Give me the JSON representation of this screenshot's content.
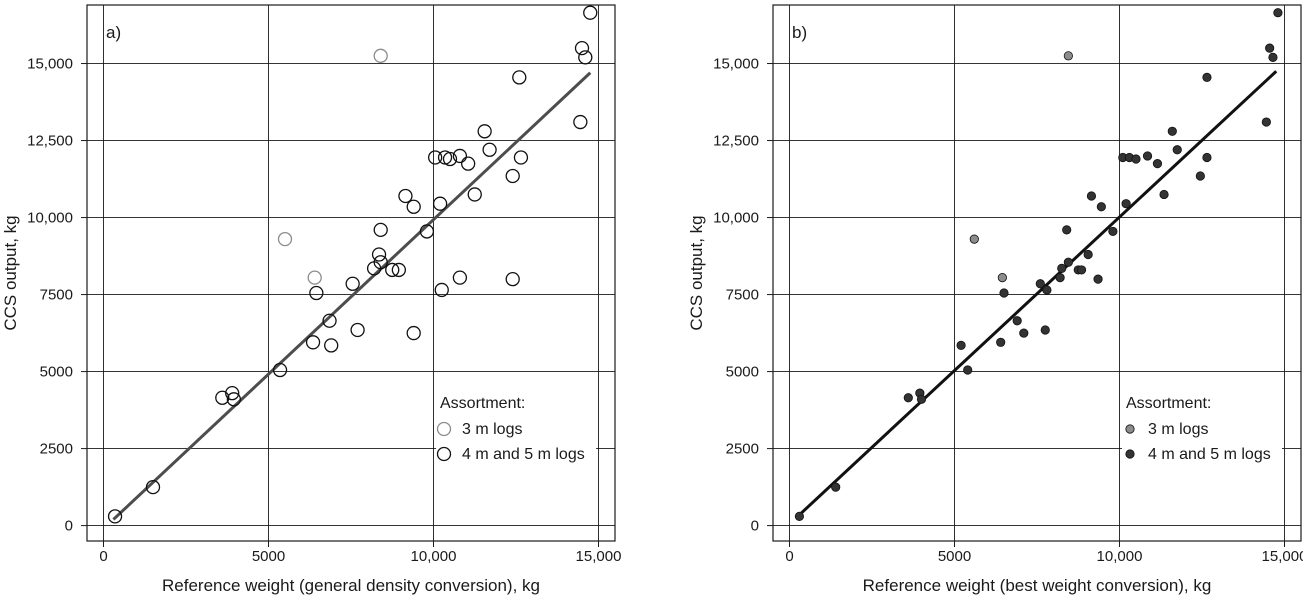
{
  "chart_data": [
    {
      "type": "scatter",
      "panel_label": "a)",
      "xlabel": "Reference weight (general density conversion), kg",
      "ylabel": "CCS output, kg",
      "xlim": [
        -500,
        15500
      ],
      "ylim": [
        -500,
        16900
      ],
      "xticks": [
        0,
        5000,
        10000,
        15000
      ],
      "xtick_labels": [
        "0",
        "5000",
        "10,000",
        "15,000"
      ],
      "yticks": [
        0,
        2500,
        5000,
        7500,
        10000,
        12500,
        15000
      ],
      "ytick_labels": [
        "0",
        "2500",
        "5000",
        "7500",
        "10,000",
        "12,500",
        "15,000"
      ],
      "grid": true,
      "legend_title": "Assortment:",
      "legend_position": "bottom-right",
      "series": [
        {
          "name": "3 m logs",
          "style": "open",
          "color": "#8c8c8c",
          "points": [
            [
              5500,
              9300
            ],
            [
              6400,
              8050
            ],
            [
              8400,
              15250
            ]
          ]
        },
        {
          "name": "4 m and 5 m logs",
          "style": "open",
          "color": "#111111",
          "points": [
            [
              350,
              300
            ],
            [
              1500,
              1250
            ],
            [
              3600,
              4150
            ],
            [
              3900,
              4300
            ],
            [
              3950,
              4100
            ],
            [
              5350,
              5050
            ],
            [
              6350,
              5950
            ],
            [
              6450,
              7550
            ],
            [
              6850,
              6650
            ],
            [
              6900,
              5850
            ],
            [
              7550,
              7850
            ],
            [
              7700,
              6350
            ],
            [
              8200,
              8350
            ],
            [
              8350,
              8800
            ],
            [
              8400,
              8550
            ],
            [
              8400,
              9600
            ],
            [
              8750,
              8300
            ],
            [
              8950,
              8300
            ],
            [
              9150,
              10700
            ],
            [
              9400,
              10350
            ],
            [
              9400,
              6250
            ],
            [
              9800,
              9550
            ],
            [
              10050,
              11950
            ],
            [
              10200,
              10450
            ],
            [
              10250,
              7650
            ],
            [
              10350,
              11950
            ],
            [
              10500,
              11900
            ],
            [
              10800,
              12000
            ],
            [
              10800,
              8050
            ],
            [
              11050,
              11750
            ],
            [
              11250,
              10750
            ],
            [
              11550,
              12800
            ],
            [
              11700,
              12200
            ],
            [
              12400,
              11350
            ],
            [
              12400,
              8000
            ],
            [
              12600,
              14550
            ],
            [
              12650,
              11950
            ],
            [
              14450,
              13100
            ],
            [
              14500,
              15500
            ],
            [
              14600,
              15200
            ],
            [
              14750,
              16650
            ]
          ]
        }
      ],
      "fit_line": [
        [
          300,
          200
        ],
        [
          14750,
          14700
        ]
      ],
      "fit_line_color": "#4d4d4d"
    },
    {
      "type": "scatter",
      "panel_label": "b)",
      "xlabel": "Reference weight (best weight conversion), kg",
      "ylabel": "CCS output, kg",
      "xlim": [
        -500,
        15500
      ],
      "ylim": [
        -500,
        16900
      ],
      "xticks": [
        0,
        5000,
        10000,
        15000
      ],
      "xtick_labels": [
        "0",
        "5000",
        "10,000",
        "15,000"
      ],
      "yticks": [
        0,
        2500,
        5000,
        7500,
        10000,
        12500,
        15000
      ],
      "ytick_labels": [
        "0",
        "2500",
        "5000",
        "7500",
        "10,000",
        "12,500",
        "15,000"
      ],
      "grid": true,
      "legend_title": "Assortment:",
      "legend_position": "bottom-right",
      "series": [
        {
          "name": "3 m logs",
          "style": "filled",
          "color": "#8c8c8c",
          "points": [
            [
              5600,
              9300
            ],
            [
              6450,
              8050
            ],
            [
              8450,
              15250
            ]
          ]
        },
        {
          "name": "4 m and 5 m logs",
          "style": "filled",
          "color": "#333333",
          "points": [
            [
              300,
              300
            ],
            [
              1400,
              1250
            ],
            [
              3600,
              4150
            ],
            [
              3950,
              4300
            ],
            [
              4000,
              4100
            ],
            [
              5200,
              5850
            ],
            [
              5400,
              5050
            ],
            [
              6400,
              5950
            ],
            [
              6500,
              7550
            ],
            [
              6900,
              6650
            ],
            [
              7100,
              6250
            ],
            [
              7600,
              7850
            ],
            [
              7750,
              6350
            ],
            [
              7800,
              7650
            ],
            [
              8200,
              8050
            ],
            [
              8250,
              8350
            ],
            [
              8400,
              9600
            ],
            [
              8450,
              8550
            ],
            [
              8750,
              8300
            ],
            [
              8850,
              8300
            ],
            [
              9050,
              8800
            ],
            [
              9150,
              10700
            ],
            [
              9350,
              8000
            ],
            [
              9450,
              10350
            ],
            [
              9800,
              9550
            ],
            [
              10100,
              11950
            ],
            [
              10200,
              10450
            ],
            [
              10300,
              11950
            ],
            [
              10500,
              11900
            ],
            [
              10850,
              12000
            ],
            [
              11150,
              11750
            ],
            [
              11350,
              10750
            ],
            [
              11600,
              12800
            ],
            [
              11750,
              12200
            ],
            [
              12450,
              11350
            ],
            [
              12650,
              14550
            ],
            [
              12650,
              11950
            ],
            [
              14450,
              13100
            ],
            [
              14550,
              15500
            ],
            [
              14650,
              15200
            ],
            [
              14800,
              16650
            ]
          ]
        }
      ],
      "fit_line": [
        [
          250,
          300
        ],
        [
          14750,
          14750
        ]
      ],
      "fit_line_color": "#111111"
    }
  ]
}
